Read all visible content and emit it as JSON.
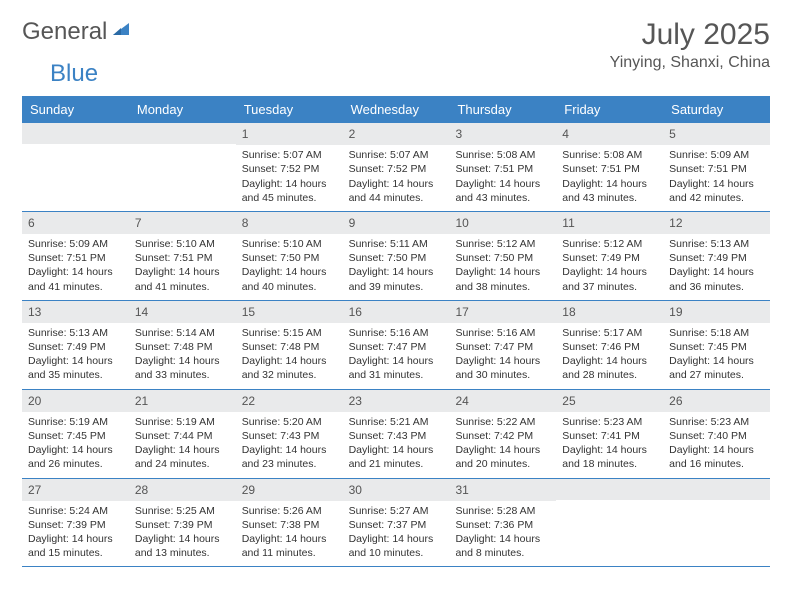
{
  "brand": {
    "text1": "General",
    "text2": "Blue"
  },
  "title": "July 2025",
  "location": "Yinying, Shanxi, China",
  "colors": {
    "header_bg": "#3b82c4",
    "header_text": "#ffffff",
    "daynum_bg": "#e9eaeb",
    "border": "#3b82c4",
    "body_text": "#333333",
    "title_text": "#565656"
  },
  "day_names": [
    "Sunday",
    "Monday",
    "Tuesday",
    "Wednesday",
    "Thursday",
    "Friday",
    "Saturday"
  ],
  "weeks": [
    [
      {
        "empty": true
      },
      {
        "empty": true
      },
      {
        "num": "1",
        "sunrise": "5:07 AM",
        "sunset": "7:52 PM",
        "daylight": "14 hours and 45 minutes."
      },
      {
        "num": "2",
        "sunrise": "5:07 AM",
        "sunset": "7:52 PM",
        "daylight": "14 hours and 44 minutes."
      },
      {
        "num": "3",
        "sunrise": "5:08 AM",
        "sunset": "7:51 PM",
        "daylight": "14 hours and 43 minutes."
      },
      {
        "num": "4",
        "sunrise": "5:08 AM",
        "sunset": "7:51 PM",
        "daylight": "14 hours and 43 minutes."
      },
      {
        "num": "5",
        "sunrise": "5:09 AM",
        "sunset": "7:51 PM",
        "daylight": "14 hours and 42 minutes."
      }
    ],
    [
      {
        "num": "6",
        "sunrise": "5:09 AM",
        "sunset": "7:51 PM",
        "daylight": "14 hours and 41 minutes."
      },
      {
        "num": "7",
        "sunrise": "5:10 AM",
        "sunset": "7:51 PM",
        "daylight": "14 hours and 41 minutes."
      },
      {
        "num": "8",
        "sunrise": "5:10 AM",
        "sunset": "7:50 PM",
        "daylight": "14 hours and 40 minutes."
      },
      {
        "num": "9",
        "sunrise": "5:11 AM",
        "sunset": "7:50 PM",
        "daylight": "14 hours and 39 minutes."
      },
      {
        "num": "10",
        "sunrise": "5:12 AM",
        "sunset": "7:50 PM",
        "daylight": "14 hours and 38 minutes."
      },
      {
        "num": "11",
        "sunrise": "5:12 AM",
        "sunset": "7:49 PM",
        "daylight": "14 hours and 37 minutes."
      },
      {
        "num": "12",
        "sunrise": "5:13 AM",
        "sunset": "7:49 PM",
        "daylight": "14 hours and 36 minutes."
      }
    ],
    [
      {
        "num": "13",
        "sunrise": "5:13 AM",
        "sunset": "7:49 PM",
        "daylight": "14 hours and 35 minutes."
      },
      {
        "num": "14",
        "sunrise": "5:14 AM",
        "sunset": "7:48 PM",
        "daylight": "14 hours and 33 minutes."
      },
      {
        "num": "15",
        "sunrise": "5:15 AM",
        "sunset": "7:48 PM",
        "daylight": "14 hours and 32 minutes."
      },
      {
        "num": "16",
        "sunrise": "5:16 AM",
        "sunset": "7:47 PM",
        "daylight": "14 hours and 31 minutes."
      },
      {
        "num": "17",
        "sunrise": "5:16 AM",
        "sunset": "7:47 PM",
        "daylight": "14 hours and 30 minutes."
      },
      {
        "num": "18",
        "sunrise": "5:17 AM",
        "sunset": "7:46 PM",
        "daylight": "14 hours and 28 minutes."
      },
      {
        "num": "19",
        "sunrise": "5:18 AM",
        "sunset": "7:45 PM",
        "daylight": "14 hours and 27 minutes."
      }
    ],
    [
      {
        "num": "20",
        "sunrise": "5:19 AM",
        "sunset": "7:45 PM",
        "daylight": "14 hours and 26 minutes."
      },
      {
        "num": "21",
        "sunrise": "5:19 AM",
        "sunset": "7:44 PM",
        "daylight": "14 hours and 24 minutes."
      },
      {
        "num": "22",
        "sunrise": "5:20 AM",
        "sunset": "7:43 PM",
        "daylight": "14 hours and 23 minutes."
      },
      {
        "num": "23",
        "sunrise": "5:21 AM",
        "sunset": "7:43 PM",
        "daylight": "14 hours and 21 minutes."
      },
      {
        "num": "24",
        "sunrise": "5:22 AM",
        "sunset": "7:42 PM",
        "daylight": "14 hours and 20 minutes."
      },
      {
        "num": "25",
        "sunrise": "5:23 AM",
        "sunset": "7:41 PM",
        "daylight": "14 hours and 18 minutes."
      },
      {
        "num": "26",
        "sunrise": "5:23 AM",
        "sunset": "7:40 PM",
        "daylight": "14 hours and 16 minutes."
      }
    ],
    [
      {
        "num": "27",
        "sunrise": "5:24 AM",
        "sunset": "7:39 PM",
        "daylight": "14 hours and 15 minutes."
      },
      {
        "num": "28",
        "sunrise": "5:25 AM",
        "sunset": "7:39 PM",
        "daylight": "14 hours and 13 minutes."
      },
      {
        "num": "29",
        "sunrise": "5:26 AM",
        "sunset": "7:38 PM",
        "daylight": "14 hours and 11 minutes."
      },
      {
        "num": "30",
        "sunrise": "5:27 AM",
        "sunset": "7:37 PM",
        "daylight": "14 hours and 10 minutes."
      },
      {
        "num": "31",
        "sunrise": "5:28 AM",
        "sunset": "7:36 PM",
        "daylight": "14 hours and 8 minutes."
      },
      {
        "empty": true
      },
      {
        "empty": true
      }
    ]
  ],
  "labels": {
    "sunrise": "Sunrise: ",
    "sunset": "Sunset: ",
    "daylight": "Daylight: "
  }
}
